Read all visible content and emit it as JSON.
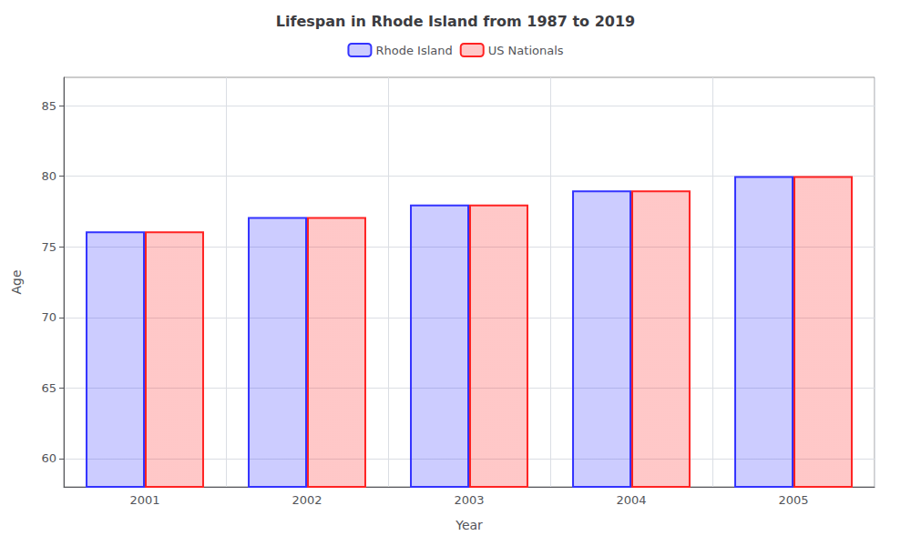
{
  "chart_data": {
    "type": "bar",
    "title": "Lifespan in Rhode Island from 1987 to 2019",
    "xlabel": "Year",
    "ylabel": "Age",
    "categories": [
      "2001",
      "2002",
      "2003",
      "2004",
      "2005"
    ],
    "series": [
      {
        "name": "Rhode Island",
        "color": "#3333ff",
        "values": [
          76.1,
          77.1,
          78.0,
          79.0,
          80.0
        ]
      },
      {
        "name": "US Nationals",
        "color": "#ff2222",
        "values": [
          76.1,
          77.1,
          78.0,
          79.0,
          80.0
        ]
      }
    ],
    "ylim": [
      58,
      87
    ],
    "yticks": [
      60,
      65,
      70,
      75,
      80,
      85
    ],
    "grid": true,
    "legend": "top"
  }
}
